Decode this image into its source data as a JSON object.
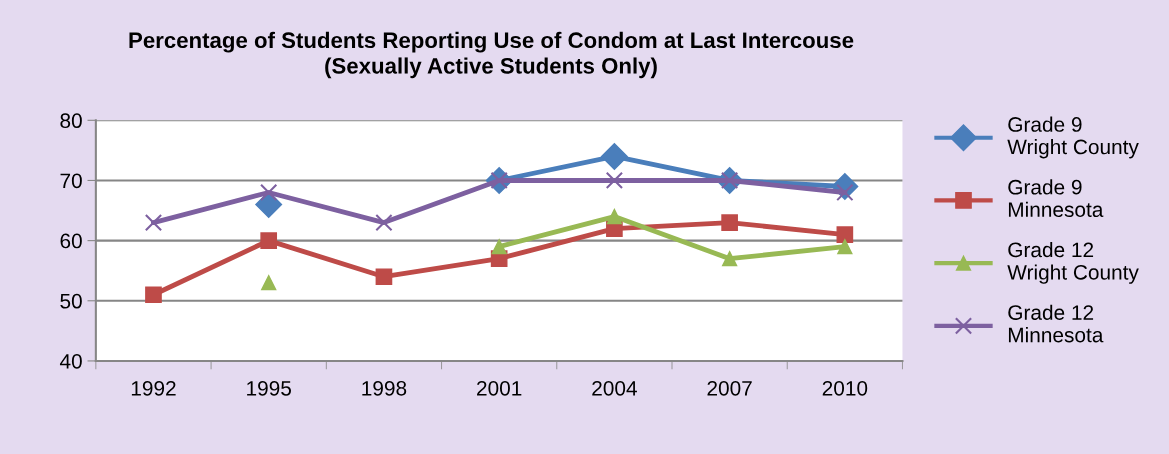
{
  "chart_data": {
    "type": "line",
    "title": "Percentage of Students Reporting Use of Condom at Last Intercouse\n(Sexually Active Students Only)",
    "categories": [
      "1992",
      "1995",
      "1998",
      "2001",
      "2004",
      "2007",
      "2010"
    ],
    "series": [
      {
        "name": "Grade 9\nWright County",
        "color": "#4a7ebb",
        "marker": "diamond",
        "values": [
          null,
          66,
          null,
          70,
          74,
          70,
          69
        ]
      },
      {
        "name": "Grade 9\nMinnesota",
        "color": "#be4b48",
        "marker": "square",
        "values": [
          51,
          60,
          54,
          57,
          62,
          63,
          61
        ]
      },
      {
        "name": "Grade 12\nWright County",
        "color": "#98b954",
        "marker": "triangle",
        "values": [
          null,
          53,
          null,
          59,
          64,
          57,
          59
        ]
      },
      {
        "name": "Grade 12\nMinnesota",
        "color": "#7d60a0",
        "marker": "cross",
        "values": [
          63,
          68,
          63,
          70,
          70,
          70,
          68
        ]
      }
    ],
    "ylim": [
      40,
      80
    ],
    "yticks": [
      40,
      50,
      60,
      70,
      80
    ],
    "grid": "y",
    "legend": "right",
    "line_style": "solid"
  }
}
